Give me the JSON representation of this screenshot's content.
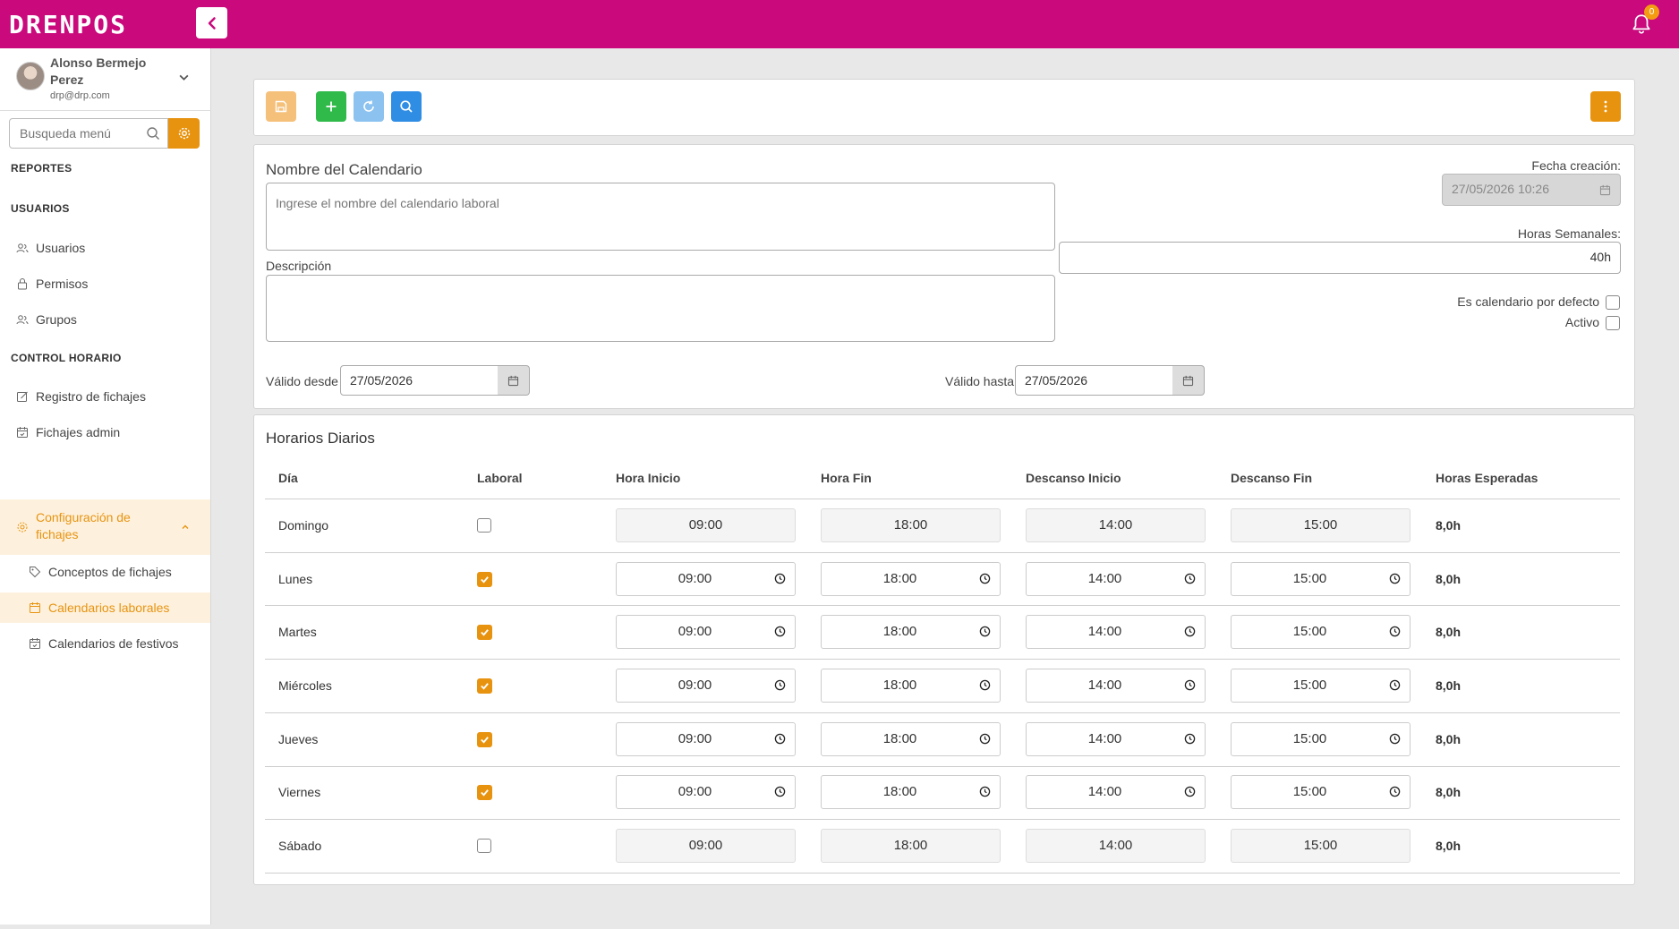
{
  "app": {
    "logo": "DRENPOS",
    "notifications_count": "0"
  },
  "user": {
    "name": "Alonso Bermejo Perez",
    "email": "drp@drp.com"
  },
  "menu_search": {
    "placeholder": "Busqueda menú"
  },
  "sidebar": {
    "sections": {
      "reportes": "REPORTES",
      "usuarios": "USUARIOS",
      "control": "CONTROL HORARIO"
    },
    "items": {
      "usuarios": "Usuarios",
      "permisos": "Permisos",
      "grupos": "Grupos",
      "registro": "Registro de fichajes",
      "fichajes_admin": "Fichajes admin",
      "configuracion": "Configuración de fichajes",
      "conceptos": "Conceptos de fichajes",
      "calendarios_laborales": "Calendarios laborales",
      "calendarios_festivos": "Calendarios de festivos"
    }
  },
  "form": {
    "name_label": "Nombre del Calendario",
    "name_placeholder": "Ingrese el nombre del calendario laboral",
    "description_label": "Descripción",
    "description_value": "",
    "creation_label": "Fecha creación:",
    "creation_value": "27/05/2026 10:26",
    "weekly_hours_label": "Horas Semanales:",
    "weekly_hours_value": "40h",
    "default_label": "Es calendario por defecto",
    "default_checked": false,
    "active_label": "Activo",
    "active_checked": false,
    "valid_from_label": "Válido desde",
    "valid_from_value": "27/05/2026",
    "valid_to_label": "Válido hasta",
    "valid_to_value": "27/05/2026"
  },
  "schedule": {
    "title": "Horarios Diarios",
    "headers": {
      "day": "Día",
      "working": "Laboral",
      "start": "Hora Inicio",
      "end": "Hora Fin",
      "break_start": "Descanso Inicio",
      "break_end": "Descanso Fin",
      "expected": "Horas Esperadas"
    },
    "rows": [
      {
        "day": "Domingo",
        "working": false,
        "start": "09:00",
        "end": "18:00",
        "break_start": "14:00",
        "break_end": "15:00",
        "expected": "8,0h"
      },
      {
        "day": "Lunes",
        "working": true,
        "start": "09:00",
        "end": "18:00",
        "break_start": "14:00",
        "break_end": "15:00",
        "expected": "8,0h"
      },
      {
        "day": "Martes",
        "working": true,
        "start": "09:00",
        "end": "18:00",
        "break_start": "14:00",
        "break_end": "15:00",
        "expected": "8,0h"
      },
      {
        "day": "Miércoles",
        "working": true,
        "start": "09:00",
        "end": "18:00",
        "break_start": "14:00",
        "break_end": "15:00",
        "expected": "8,0h"
      },
      {
        "day": "Jueves",
        "working": true,
        "start": "09:00",
        "end": "18:00",
        "break_start": "14:00",
        "break_end": "15:00",
        "expected": "8,0h"
      },
      {
        "day": "Viernes",
        "working": true,
        "start": "09:00",
        "end": "18:00",
        "break_start": "14:00",
        "break_end": "15:00",
        "expected": "8,0h"
      },
      {
        "day": "Sábado",
        "working": false,
        "start": "09:00",
        "end": "18:00",
        "break_start": "14:00",
        "break_end": "15:00",
        "expected": "8,0h"
      }
    ]
  },
  "colors": {
    "brand": "#c9097c",
    "accent": "#e8930f",
    "save": "#f5c07a",
    "add": "#2fba4a",
    "refresh": "#8cc2ef",
    "search": "#2f8de4"
  }
}
